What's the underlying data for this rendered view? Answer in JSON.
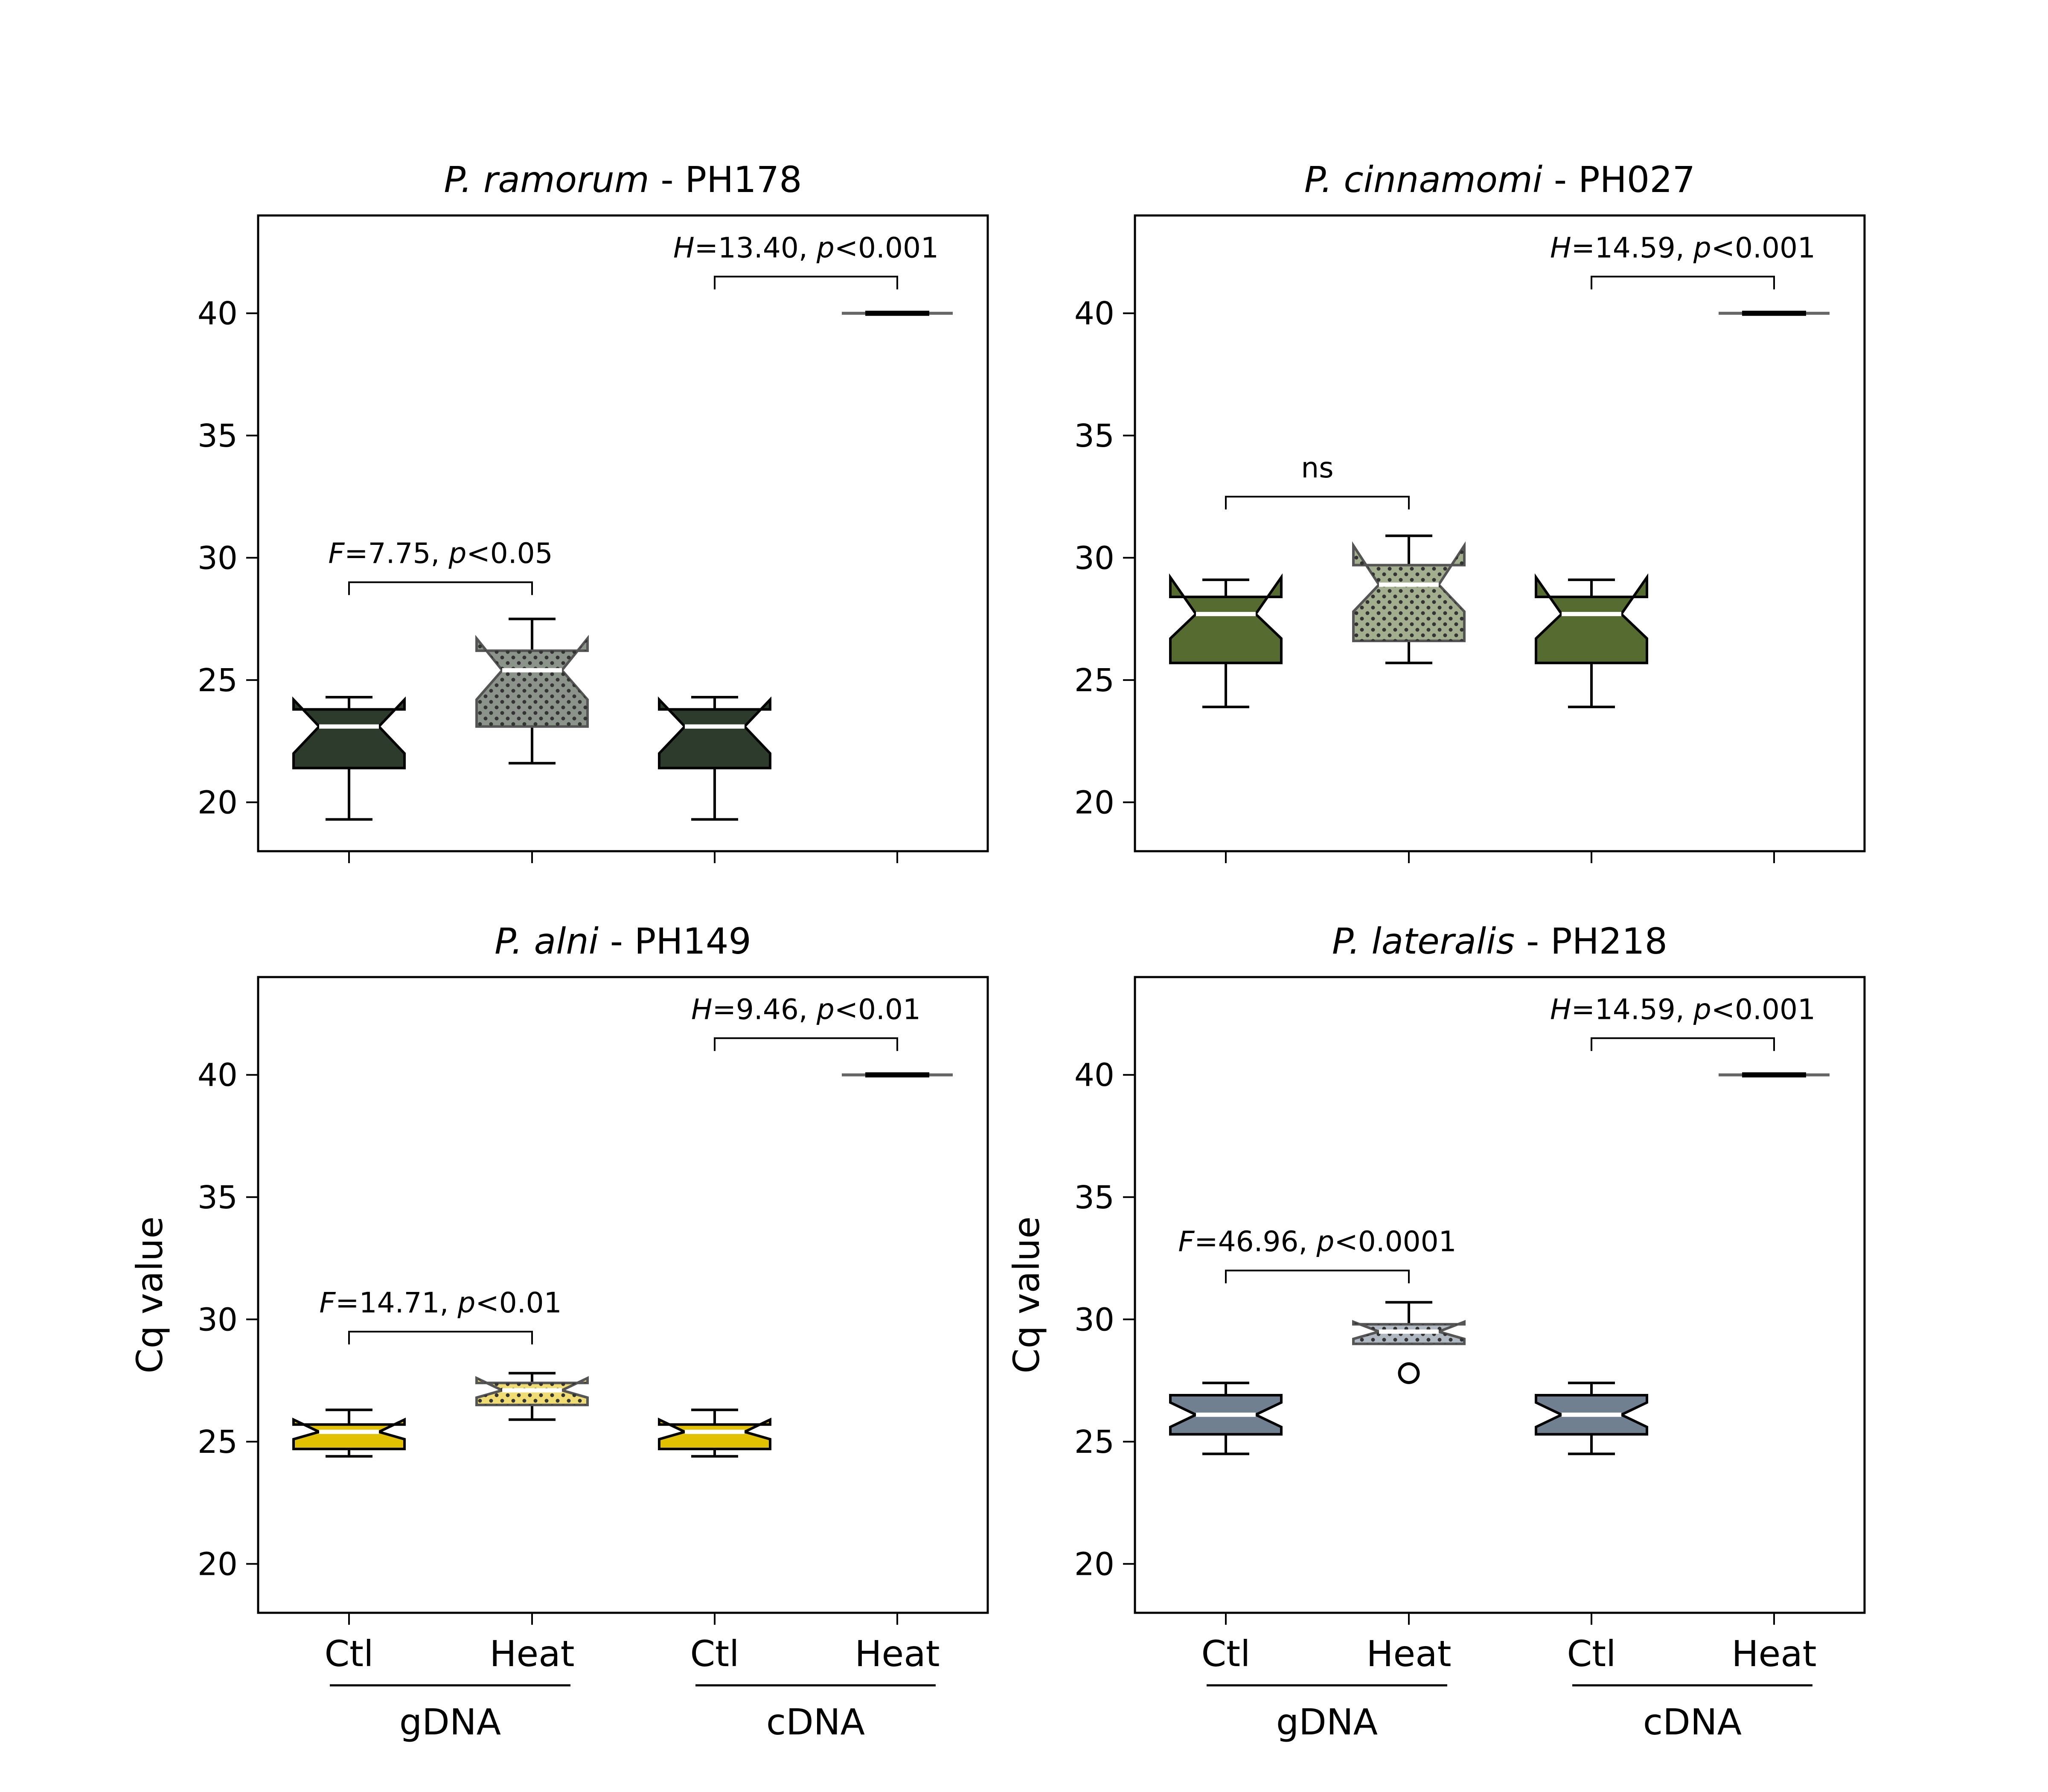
{
  "chart_data": [
    {
      "type": "box",
      "title_species": "P. ramorum",
      "title_suffix": " - PH178",
      "ylabel": "",
      "ylim": [
        18,
        44
      ],
      "yticks": [
        "20",
        "25",
        "30",
        "35",
        "40"
      ],
      "categories": [
        "Ctl",
        "Heat",
        "Ctl",
        "Heat"
      ],
      "groups": [
        "gDNA",
        "cDNA"
      ],
      "box_color": "#2d3b2c",
      "boxes": [
        {
          "category": "Ctl",
          "group": "gDNA",
          "whislo": 19.3,
          "q1": 21.4,
          "med": 23.1,
          "q3": 23.8,
          "whishi": 24.3,
          "notch_lo": 22.0,
          "notch_hi": 24.2,
          "fliers": []
        },
        {
          "category": "Heat",
          "group": "gDNA",
          "whislo": 21.6,
          "q1": 23.1,
          "med": 25.4,
          "q3": 26.2,
          "whishi": 27.5,
          "notch_lo": 24.2,
          "notch_hi": 26.7,
          "fliers": []
        },
        {
          "category": "Ctl",
          "group": "cDNA",
          "whislo": 19.3,
          "q1": 21.4,
          "med": 23.1,
          "q3": 23.8,
          "whishi": 24.3,
          "notch_lo": 22.0,
          "notch_hi": 24.2,
          "fliers": []
        },
        {
          "category": "Heat",
          "group": "cDNA",
          "whislo": 40.0,
          "q1": 40.0,
          "med": 40.0,
          "q3": 40.0,
          "whishi": 40.0,
          "notch_lo": 40.0,
          "notch_hi": 40.0,
          "fliers": []
        }
      ],
      "annotations": [
        {
          "stat": "F",
          "text": "=7.75, ",
          "p": "p",
          "ptext": "<0.05",
          "from": 0,
          "to": 1,
          "y": 29.0
        },
        {
          "stat": "H",
          "text": "=13.40, ",
          "p": "p",
          "ptext": "<0.001",
          "from": 2,
          "to": 3,
          "y": 41.5
        }
      ]
    },
    {
      "type": "box",
      "title_species": "P. cinnamomi",
      "title_suffix": " - PH027",
      "ylabel": "",
      "ylim": [
        18,
        44
      ],
      "yticks": [
        "20",
        "25",
        "30",
        "35",
        "40"
      ],
      "categories": [
        "Ctl",
        "Heat",
        "Ctl",
        "Heat"
      ],
      "groups": [
        "gDNA",
        "cDNA"
      ],
      "box_color": "#556b2f",
      "boxes": [
        {
          "category": "Ctl",
          "group": "gDNA",
          "whislo": 23.9,
          "q1": 25.7,
          "med": 27.7,
          "q3": 28.4,
          "whishi": 29.1,
          "notch_lo": 26.7,
          "notch_hi": 29.2,
          "fliers": []
        },
        {
          "category": "Heat",
          "group": "gDNA",
          "whislo": 25.7,
          "q1": 26.6,
          "med": 28.9,
          "q3": 29.7,
          "whishi": 30.9,
          "notch_lo": 27.8,
          "notch_hi": 30.5,
          "fliers": []
        },
        {
          "category": "Ctl",
          "group": "cDNA",
          "whislo": 23.9,
          "q1": 25.7,
          "med": 27.7,
          "q3": 28.4,
          "whishi": 29.1,
          "notch_lo": 26.7,
          "notch_hi": 29.2,
          "fliers": []
        },
        {
          "category": "Heat",
          "group": "cDNA",
          "whislo": 40.0,
          "q1": 40.0,
          "med": 40.0,
          "q3": 40.0,
          "whishi": 40.0,
          "notch_lo": 40.0,
          "notch_hi": 40.0,
          "fliers": []
        }
      ],
      "annotations": [
        {
          "stat": "",
          "text": "ns",
          "p": "",
          "ptext": "",
          "from": 0,
          "to": 1,
          "y": 32.5
        },
        {
          "stat": "H",
          "text": "=14.59, ",
          "p": "p",
          "ptext": "<0.001",
          "from": 2,
          "to": 3,
          "y": 41.5
        }
      ]
    },
    {
      "type": "box",
      "title_species": "P. alni",
      "title_suffix": " - PH149",
      "ylabel": "Cq value",
      "ylim": [
        18,
        44
      ],
      "yticks": [
        "20",
        "25",
        "30",
        "35",
        "40"
      ],
      "categories": [
        "Ctl",
        "Heat",
        "Ctl",
        "Heat"
      ],
      "groups": [
        "gDNA",
        "cDNA"
      ],
      "box_color": "#e2c200",
      "boxes": [
        {
          "category": "Ctl",
          "group": "gDNA",
          "whislo": 24.4,
          "q1": 24.7,
          "med": 25.4,
          "q3": 25.7,
          "whishi": 26.3,
          "notch_lo": 25.1,
          "notch_hi": 25.9,
          "fliers": []
        },
        {
          "category": "Heat",
          "group": "gDNA",
          "whislo": 25.9,
          "q1": 26.5,
          "med": 27.1,
          "q3": 27.4,
          "whishi": 27.8,
          "notch_lo": 26.8,
          "notch_hi": 27.6,
          "fliers": []
        },
        {
          "category": "Ctl",
          "group": "cDNA",
          "whislo": 24.4,
          "q1": 24.7,
          "med": 25.4,
          "q3": 25.7,
          "whishi": 26.3,
          "notch_lo": 25.1,
          "notch_hi": 25.9,
          "fliers": []
        },
        {
          "category": "Heat",
          "group": "cDNA",
          "whislo": 40.0,
          "q1": 40.0,
          "med": 40.0,
          "q3": 40.0,
          "whishi": 40.0,
          "notch_lo": 40.0,
          "notch_hi": 40.0,
          "fliers": []
        }
      ],
      "annotations": [
        {
          "stat": "F",
          "text": "=14.71, ",
          "p": "p",
          "ptext": "<0.01",
          "from": 0,
          "to": 1,
          "y": 29.5
        },
        {
          "stat": "H",
          "text": "=9.46, ",
          "p": "p",
          "ptext": "<0.01",
          "from": 2,
          "to": 3,
          "y": 41.5
        }
      ]
    },
    {
      "type": "box",
      "title_species": "P. lateralis",
      "title_suffix": " - PH218",
      "ylabel": "Cq value",
      "ylim": [
        18,
        44
      ],
      "yticks": [
        "20",
        "25",
        "30",
        "35",
        "40"
      ],
      "categories": [
        "Ctl",
        "Heat",
        "Ctl",
        "Heat"
      ],
      "groups": [
        "gDNA",
        "cDNA"
      ],
      "box_color": "#708090",
      "boxes": [
        {
          "category": "Ctl",
          "group": "gDNA",
          "whislo": 24.5,
          "q1": 25.3,
          "med": 26.1,
          "q3": 26.9,
          "whishi": 27.4,
          "notch_lo": 25.6,
          "notch_hi": 26.6,
          "fliers": []
        },
        {
          "category": "Heat",
          "group": "gDNA",
          "whislo": 29.0,
          "q1": 29.0,
          "med": 29.5,
          "q3": 29.8,
          "whishi": 30.7,
          "notch_lo": 29.2,
          "notch_hi": 29.9,
          "fliers": [
            27.8
          ]
        },
        {
          "category": "Ctl",
          "group": "cDNA",
          "whislo": 24.5,
          "q1": 25.3,
          "med": 26.1,
          "q3": 26.9,
          "whishi": 27.4,
          "notch_lo": 25.6,
          "notch_hi": 26.6,
          "fliers": []
        },
        {
          "category": "Heat",
          "group": "cDNA",
          "whislo": 40.0,
          "q1": 40.0,
          "med": 40.0,
          "q3": 40.0,
          "whishi": 40.0,
          "notch_lo": 40.0,
          "notch_hi": 40.0,
          "fliers": []
        }
      ],
      "annotations": [
        {
          "stat": "F",
          "text": "=46.96, ",
          "p": "p",
          "ptext": "<0.0001",
          "from": 0,
          "to": 1,
          "y": 32.0
        },
        {
          "stat": "H",
          "text": "=14.59, ",
          "p": "p",
          "ptext": "<0.001",
          "from": 2,
          "to": 3,
          "y": 41.5
        }
      ]
    }
  ]
}
